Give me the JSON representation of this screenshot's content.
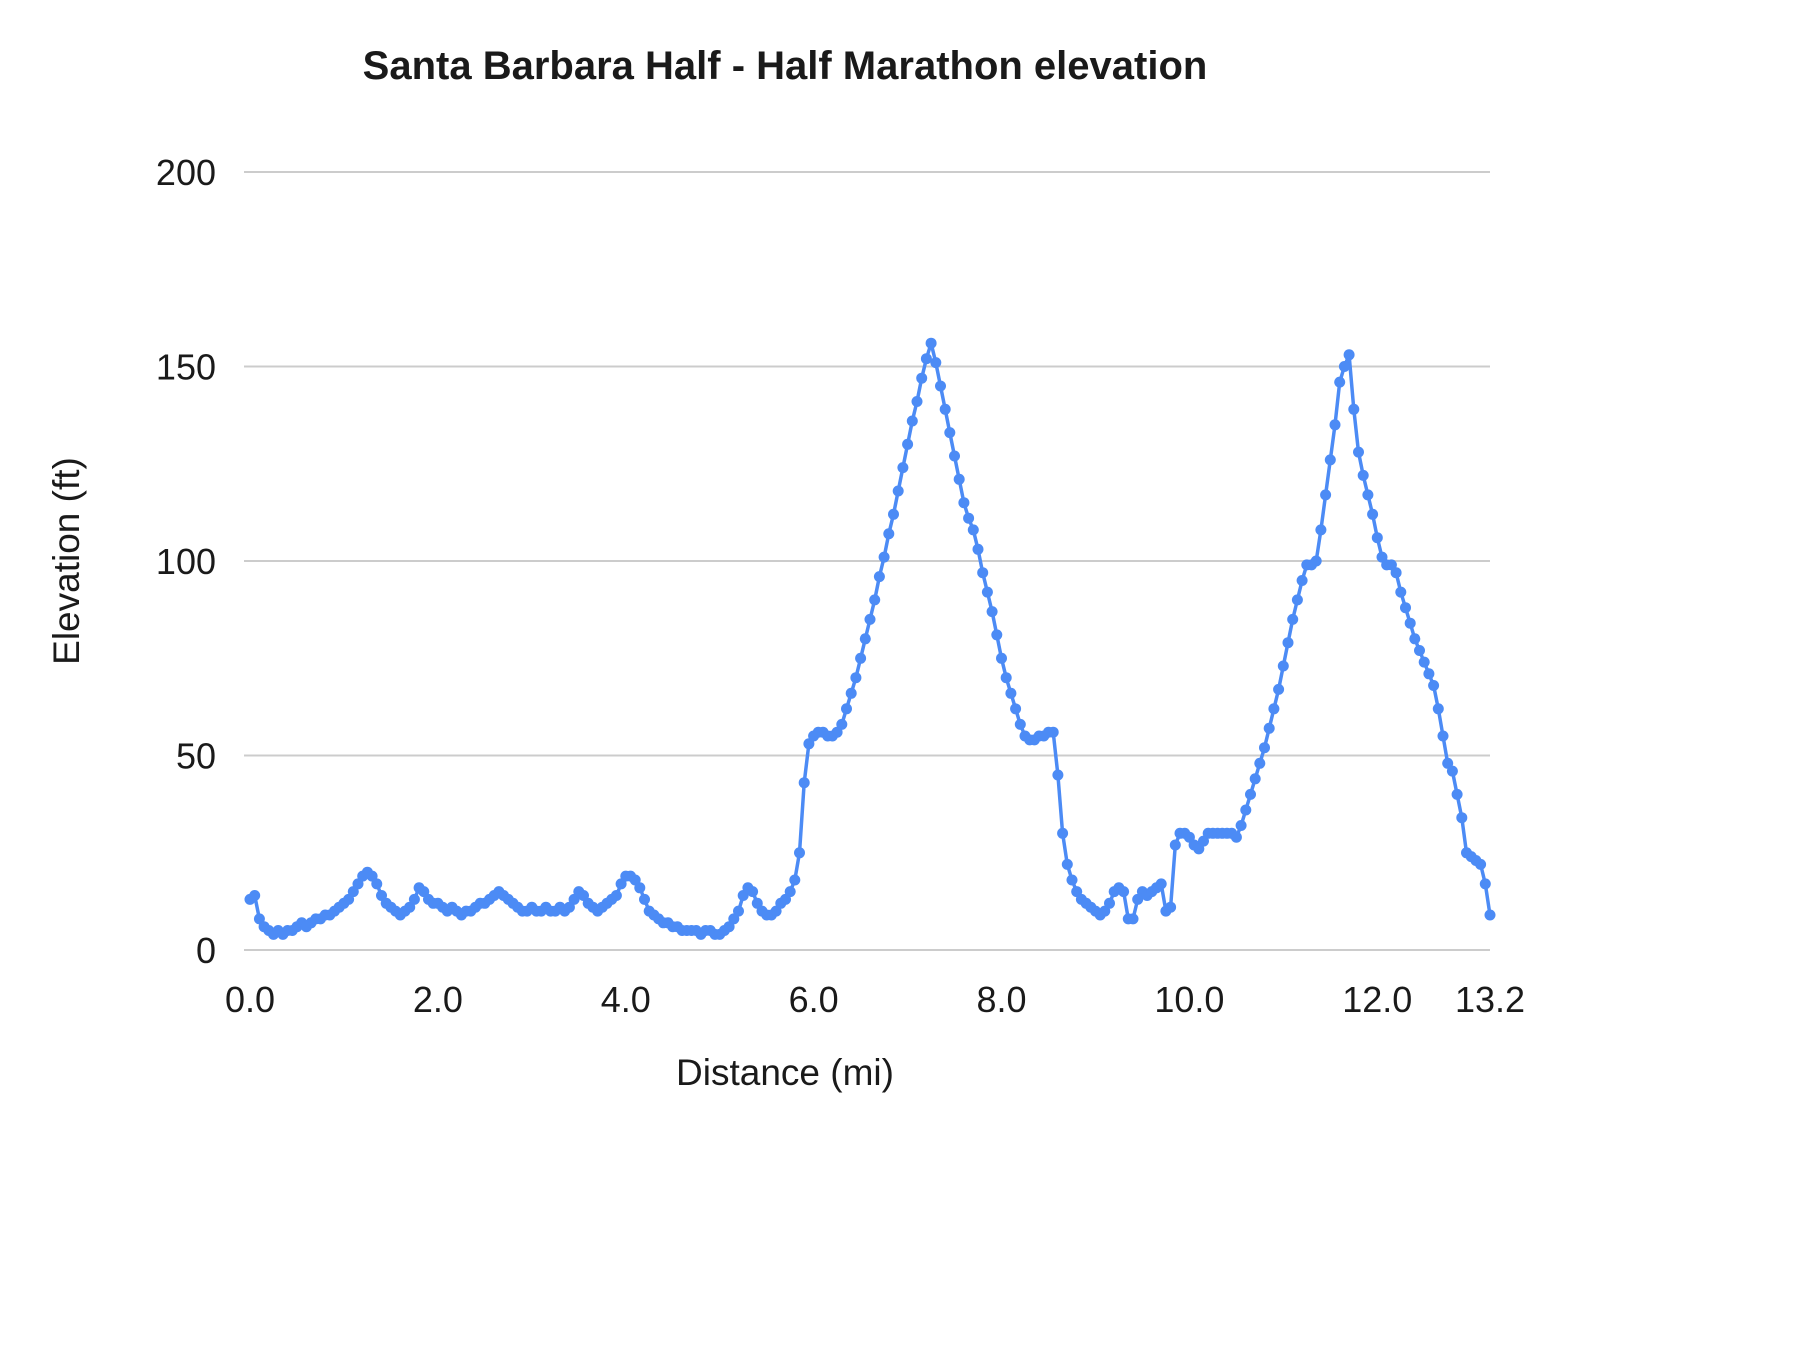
{
  "chart_data": {
    "type": "line",
    "title": "Santa Barbara Half - Half Marathon elevation",
    "xlabel": "Distance (mi)",
    "ylabel": "Elevation (ft)",
    "xlim": [
      0,
      13.2
    ],
    "ylim": [
      0,
      200
    ],
    "x_ticks": [
      0.0,
      2.0,
      4.0,
      6.0,
      8.0,
      10.0,
      12.0,
      13.2
    ],
    "x_tick_labels": [
      "0.0",
      "2.0",
      "4.0",
      "6.0",
      "8.0",
      "10.0",
      "12.0",
      "13.2"
    ],
    "y_ticks": [
      0,
      50,
      100,
      150,
      200
    ],
    "grid": "horizontal",
    "legend": "none",
    "series_name": "Elevation (ft)",
    "series_color": "#4c8bf5",
    "grid_color": "#cccccc",
    "marker": "circle",
    "n_points": 265,
    "x_start": 0.0,
    "x_step": 0.05,
    "x_end": 13.2,
    "y": [
      13,
      14,
      8,
      6,
      5,
      4,
      5,
      4,
      5,
      5,
      6,
      7,
      6,
      7,
      8,
      8,
      9,
      9,
      10,
      11,
      12,
      13,
      15,
      17,
      19,
      20,
      19,
      17,
      14,
      12,
      11,
      10,
      9,
      10,
      11,
      13,
      16,
      15,
      13,
      12,
      12,
      11,
      10,
      11,
      10,
      9,
      10,
      10,
      11,
      12,
      12,
      13,
      14,
      15,
      14,
      13,
      12,
      11,
      10,
      10,
      11,
      10,
      10,
      11,
      10,
      10,
      11,
      10,
      11,
      13,
      15,
      14,
      12,
      11,
      10,
      11,
      12,
      13,
      14,
      17,
      19,
      19,
      18,
      16,
      13,
      10,
      9,
      8,
      7,
      7,
      6,
      6,
      5,
      5,
      5,
      5,
      4,
      5,
      5,
      4,
      4,
      5,
      6,
      8,
      10,
      14,
      16,
      15,
      12,
      10,
      9,
      9,
      10,
      12,
      13,
      15,
      18,
      25,
      43,
      53,
      55,
      56,
      56,
      55,
      55,
      56,
      58,
      62,
      66,
      70,
      75,
      80,
      85,
      90,
      96,
      101,
      107,
      112,
      118,
      124,
      130,
      136,
      141,
      147,
      152,
      156,
      151,
      145,
      139,
      133,
      127,
      121,
      115,
      111,
      108,
      103,
      97,
      92,
      87,
      81,
      75,
      70,
      66,
      62,
      58,
      55,
      54,
      54,
      55,
      55,
      56,
      56,
      45,
      30,
      22,
      18,
      15,
      13,
      12,
      11,
      10,
      9,
      10,
      12,
      15,
      16,
      15,
      8,
      8,
      13,
      15,
      14,
      15,
      16,
      17,
      10,
      11,
      27,
      30,
      30,
      29,
      27,
      26,
      28,
      30,
      30,
      30,
      30,
      30,
      30,
      29,
      32,
      36,
      40,
      44,
      48,
      52,
      57,
      62,
      67,
      73,
      79,
      85,
      90,
      95,
      99,
      99,
      100,
      108,
      117,
      126,
      135,
      146,
      150,
      153,
      139,
      128,
      122,
      117,
      112,
      106,
      101,
      99,
      99,
      97,
      92,
      88,
      84,
      80,
      77,
      74,
      71,
      68,
      62,
      55,
      48,
      46,
      40,
      34,
      25,
      24,
      23,
      22,
      17,
      9
    ]
  }
}
